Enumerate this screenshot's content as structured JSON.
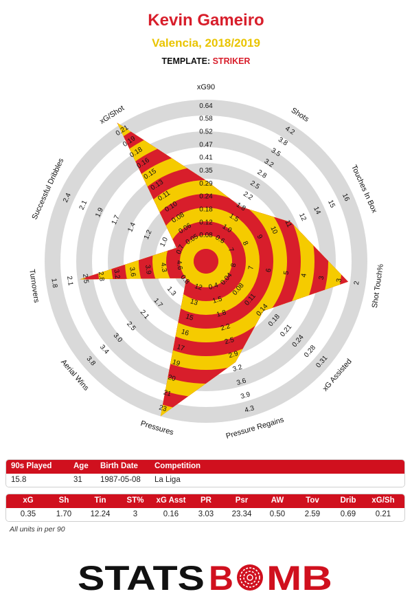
{
  "header": {
    "player": "Kevin Gameiro",
    "team_season": "Valencia, 2018/2019",
    "template_label": "TEMPLATE: ",
    "template_value": "STRIKER"
  },
  "colors": {
    "red": "#d81e2b",
    "yellow": "#f5cb00",
    "ring_grey": "#d9d9d9",
    "header_red": "#d0101e"
  },
  "chart_data": {
    "type": "radar",
    "axes": [
      {
        "name": "xG90",
        "ticks": [
          "0.08",
          "0.12",
          "0.18",
          "0.24",
          "0.29",
          "0.35",
          "0.41",
          "0.47",
          "0.52",
          "0.58",
          "0.64"
        ],
        "value": 0.35,
        "frac": 0.5
      },
      {
        "name": "Shots",
        "ticks": [
          "0.6",
          "1.0",
          "1.5",
          "1.8",
          "2.2",
          "2.5",
          "2.8",
          "3.2",
          "3.5",
          "3.8",
          "4.2"
        ],
        "value": 1.7,
        "frac": 0.4
      },
      {
        "name": "Touches In Box",
        "ticks": [
          "7",
          "8",
          "9",
          "10",
          "11",
          "12",
          "14",
          "15",
          "16"
        ],
        "value": 12.24,
        "frac": 0.58
      },
      {
        "name": "Shot Touch%",
        "ticks": [
          "8",
          "7",
          "6",
          "5",
          "4",
          "3",
          "3",
          "2"
        ],
        "value": 3,
        "frac": 0.89
      },
      {
        "name": "xG Assisted",
        "ticks": [
          "0.04",
          "0.08",
          "0.11",
          "0.14",
          "0.18",
          "0.21",
          "0.24",
          "0.28",
          "0.31"
        ],
        "value": 0.16,
        "frac": 0.47
      },
      {
        "name": "Pressure Regains",
        "ticks": [
          "0.4",
          "1.5",
          "1.8",
          "2.2",
          "2.5",
          "2.9",
          "3.2",
          "3.6",
          "3.9",
          "4.3"
        ],
        "value": 3.03,
        "frac": 0.65
      },
      {
        "name": "Pressures",
        "ticks": [
          "12",
          "13",
          "15",
          "16",
          "17",
          "19",
          "20",
          "21",
          "23"
        ],
        "value": 23.34,
        "frac": 1.0
      },
      {
        "name": "Aerial Wins",
        "ticks": [
          "0.8",
          "1.3",
          "1.7",
          "2.1",
          "2.5",
          "3.0",
          "3.4",
          "3.8"
        ],
        "value": 0.5,
        "frac": 0.16
      },
      {
        "name": "Turnovers",
        "ticks": [
          "4.6",
          "4.3",
          "3.9",
          "3.6",
          "3.2",
          "2.8",
          "2.5",
          "2.1",
          "1.8"
        ],
        "value": 2.59,
        "frac": 0.79
      },
      {
        "name": "Successful Dribbles",
        "ticks": [
          "0.7",
          "1.0",
          "1.2",
          "1.4",
          "1.7",
          "1.9",
          "2.1",
          "2.4"
        ],
        "value": 0.69,
        "frac": 0.2
      },
      {
        "name": "xG/Shot",
        "ticks": [
          "0.05",
          "0.06",
          "0.08",
          "0.10",
          "0.11",
          "0.13",
          "0.15",
          "0.16",
          "0.18",
          "0.19",
          "0.21"
        ],
        "value": 0.21,
        "frac": 1.02
      }
    ]
  },
  "info_table": {
    "headers": [
      "90s Played",
      "Age",
      "Birth Date",
      "Competition"
    ],
    "values": [
      "15.8",
      "31",
      "1987-05-08",
      "La Liga"
    ]
  },
  "stats_table": {
    "headers": [
      "xG",
      "Sh",
      "Tin",
      "ST%",
      "xG Asst",
      "PR",
      "Psr",
      "AW",
      "Tov",
      "Drib",
      "xG/Sh"
    ],
    "values": [
      "0.35",
      "1.70",
      "12.24",
      "3",
      "0.16",
      "3.03",
      "23.34",
      "0.50",
      "2.59",
      "0.69",
      "0.21"
    ]
  },
  "footnote": "All units in per 90",
  "logo": {
    "text_left": "STATS",
    "text_right": "B",
    "text_o": "O",
    "text_end": "MB"
  }
}
